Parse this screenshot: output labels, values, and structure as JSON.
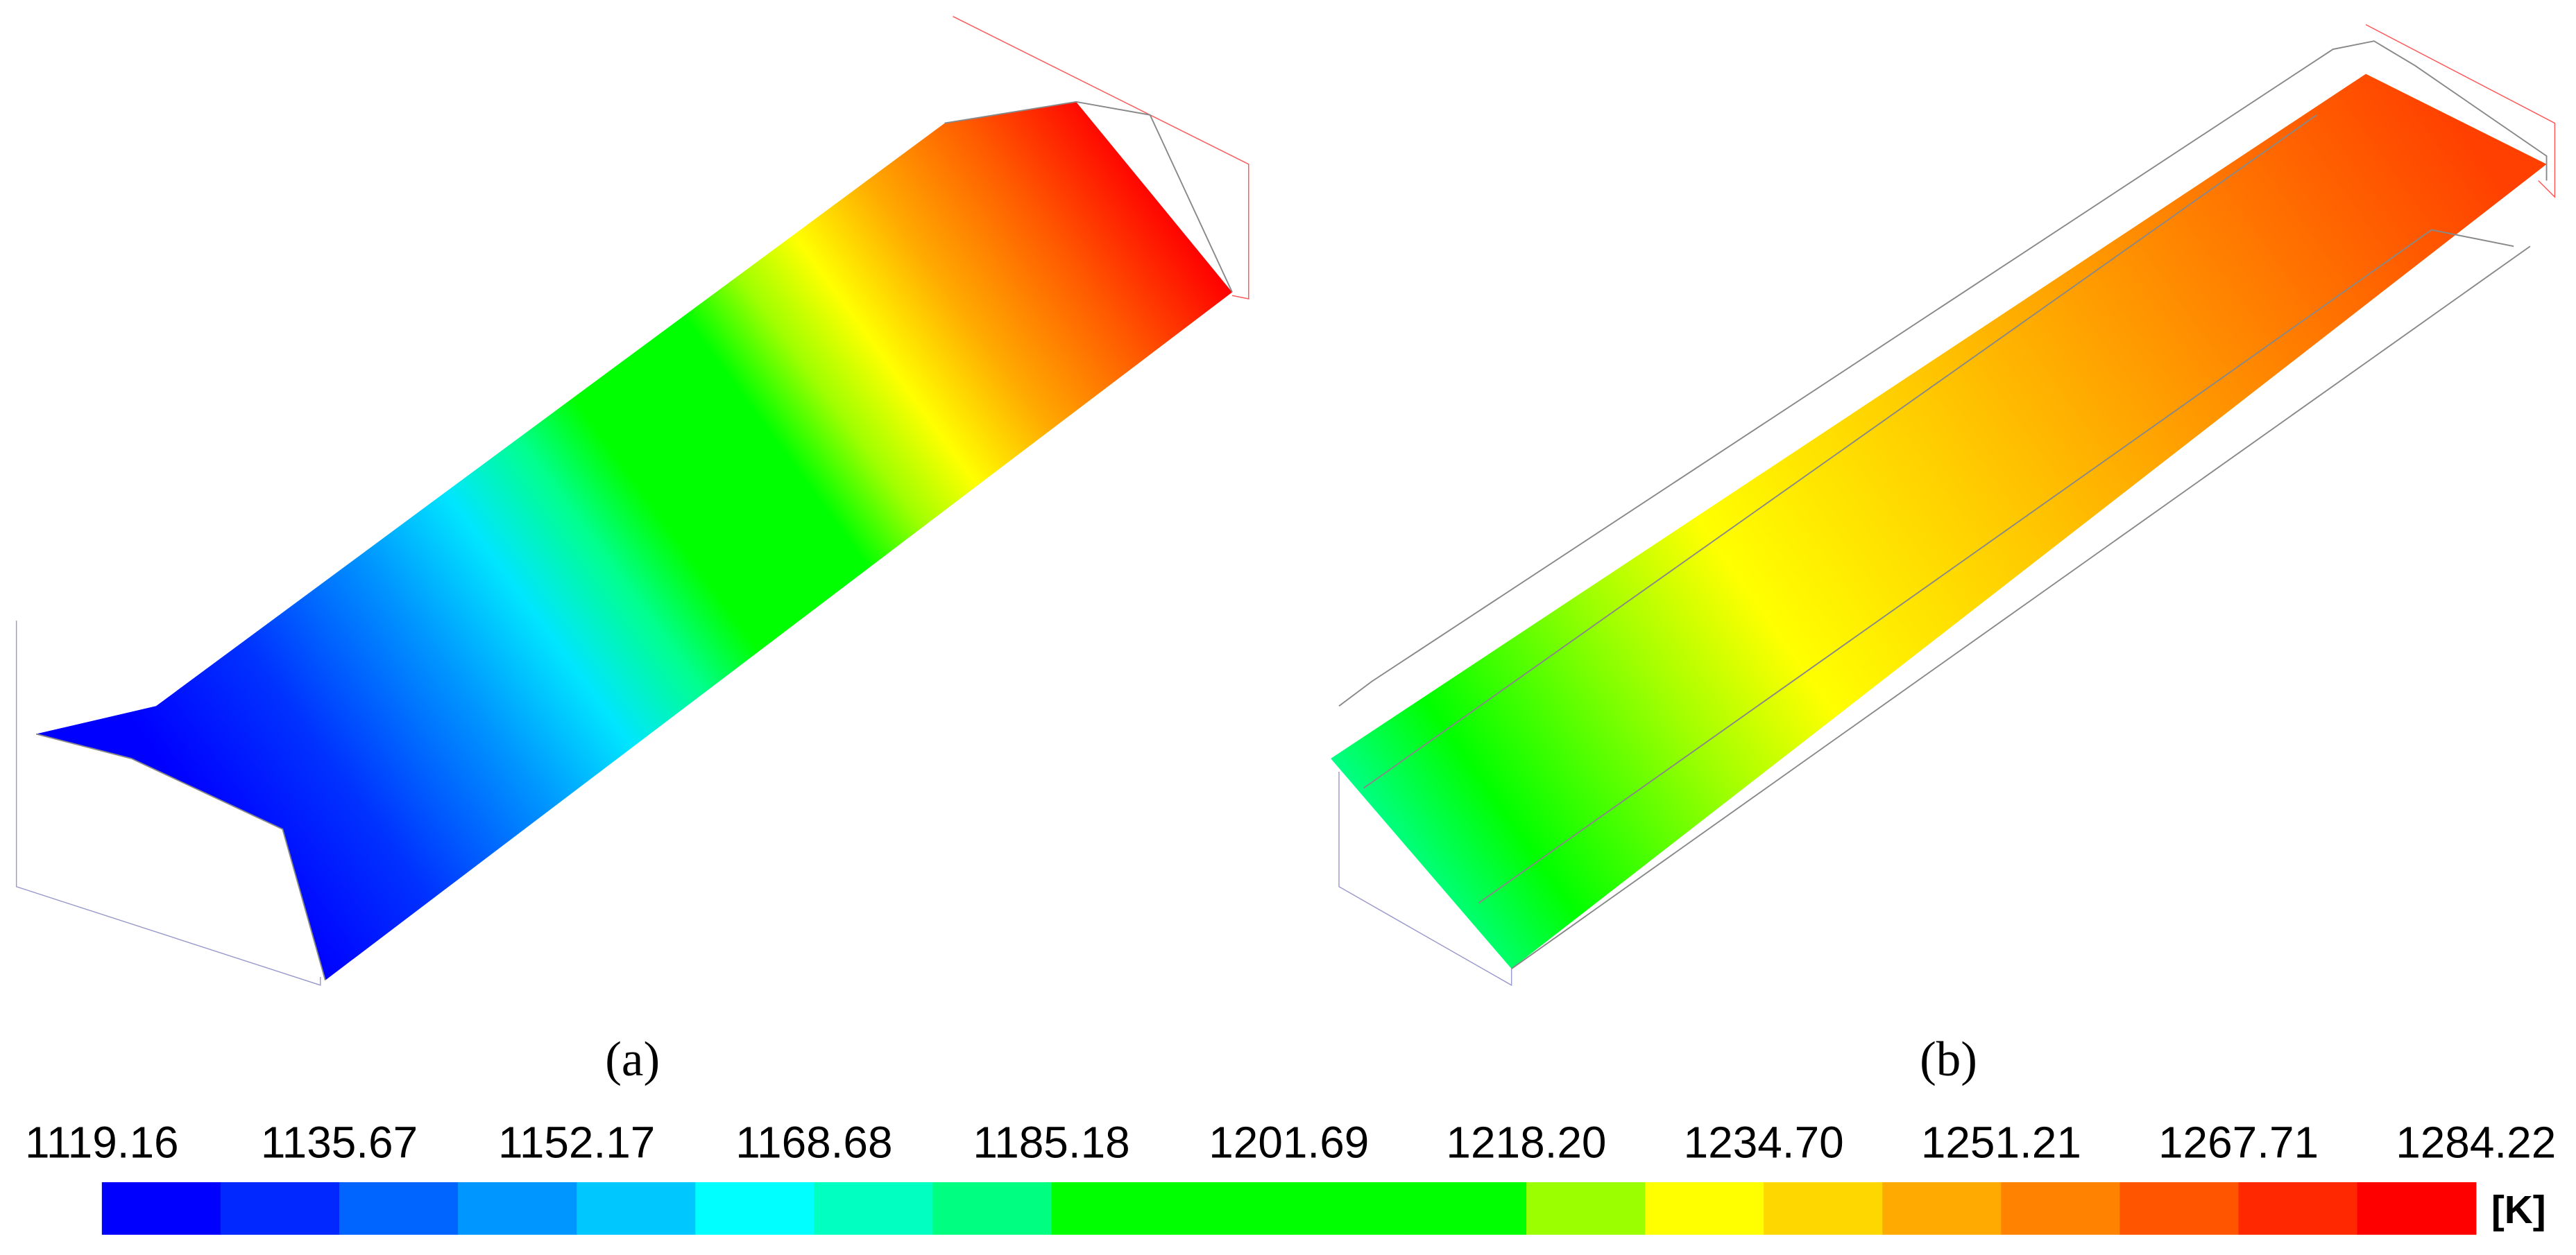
{
  "panels": [
    {
      "label": "(a)"
    },
    {
      "label": "(b)"
    }
  ],
  "colorbar": {
    "ticks": [
      "1119.16",
      "1135.67",
      "1152.17",
      "1168.68",
      "1185.18",
      "1201.69",
      "1218.20",
      "1234.70",
      "1251.21",
      "1267.71",
      "1284.22"
    ],
    "unit": "[K]"
  }
}
